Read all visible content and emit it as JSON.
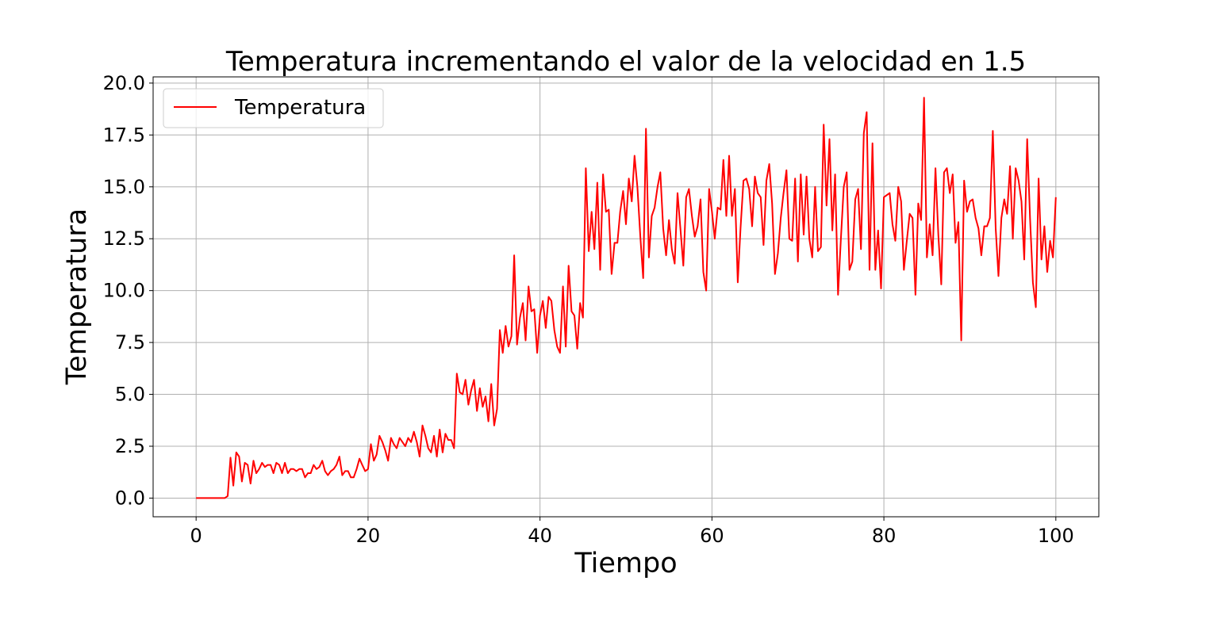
{
  "chart_data": {
    "type": "line",
    "title": "Temperatura incrementando el valor de la velocidad en 1.5",
    "xlabel": "Tiempo",
    "ylabel": "Temperatura",
    "xlim": [
      -5,
      105
    ],
    "ylim": [
      -0.9,
      20.3
    ],
    "x_ticks": [
      0,
      20,
      40,
      60,
      80,
      100
    ],
    "y_ticks": [
      0.0,
      2.5,
      5.0,
      7.5,
      10.0,
      12.5,
      15.0,
      17.5,
      20.0
    ],
    "x_tick_labels": [
      "0",
      "20",
      "40",
      "60",
      "80",
      "100"
    ],
    "y_tick_labels": [
      "0.0",
      "2.5",
      "5.0",
      "7.5",
      "10.0",
      "12.5",
      "15.0",
      "17.5",
      "20.0"
    ],
    "grid": true,
    "legend_position": "top-left",
    "series": [
      {
        "name": "Temperatura",
        "color": "#ff0000",
        "x": [
          0.0,
          0.33,
          0.67,
          1.0,
          1.33,
          1.67,
          2.0,
          2.33,
          2.67,
          3.0,
          3.33,
          3.67,
          4.0,
          4.33,
          4.67,
          5.0,
          5.33,
          5.67,
          6.0,
          6.33,
          6.67,
          7.0,
          7.33,
          7.67,
          8.0,
          8.33,
          8.67,
          9.0,
          9.33,
          9.67,
          10.0,
          10.33,
          10.67,
          11.0,
          11.33,
          11.67,
          12.0,
          12.33,
          12.67,
          13.0,
          13.33,
          13.67,
          14.0,
          14.33,
          14.67,
          15.0,
          15.33,
          15.67,
          16.0,
          16.33,
          16.67,
          17.0,
          17.33,
          17.67,
          18.0,
          18.33,
          18.67,
          19.0,
          19.33,
          19.67,
          20.0,
          20.33,
          20.67,
          21.0,
          21.33,
          21.67,
          22.0,
          22.33,
          22.67,
          23.0,
          23.33,
          23.67,
          24.0,
          24.33,
          24.67,
          25.0,
          25.33,
          25.67,
          26.0,
          26.33,
          26.67,
          27.0,
          27.33,
          27.67,
          28.0,
          28.33,
          28.67,
          29.0,
          29.33,
          29.67,
          30.0,
          30.33,
          30.67,
          31.0,
          31.33,
          31.67,
          32.0,
          32.33,
          32.67,
          33.0,
          33.33,
          33.67,
          34.0,
          34.33,
          34.67,
          35.0,
          35.33,
          35.67,
          36.0,
          36.33,
          36.67,
          37.0,
          37.33,
          37.67,
          38.0,
          38.33,
          38.67,
          39.0,
          39.33,
          39.67,
          40.0,
          40.33,
          40.67,
          41.0,
          41.33,
          41.67,
          42.0,
          42.33,
          42.67,
          43.0,
          43.33,
          43.67,
          44.0,
          44.33,
          44.67,
          45.0,
          45.33,
          45.67,
          46.0,
          46.33,
          46.67,
          47.0,
          47.33,
          47.67,
          48.0,
          48.33,
          48.67,
          49.0,
          49.33,
          49.67,
          50.0,
          50.33,
          50.67,
          51.0,
          51.33,
          51.67,
          52.0,
          52.33,
          52.67,
          53.0,
          53.33,
          53.67,
          54.0,
          54.33,
          54.67,
          55.0,
          55.33,
          55.67,
          56.0,
          56.33,
          56.67,
          57.0,
          57.33,
          57.67,
          58.0,
          58.33,
          58.67,
          59.0,
          59.33,
          59.67,
          60.0,
          60.33,
          60.67,
          61.0,
          61.33,
          61.67,
          62.0,
          62.33,
          62.67,
          63.0,
          63.33,
          63.67,
          64.0,
          64.33,
          64.67,
          65.0,
          65.33,
          65.67,
          66.0,
          66.33,
          66.67,
          67.0,
          67.33,
          67.67,
          68.0,
          68.33,
          68.67,
          69.0,
          69.33,
          69.67,
          70.0,
          70.33,
          70.67,
          71.0,
          71.33,
          71.67,
          72.0,
          72.33,
          72.67,
          73.0,
          73.33,
          73.67,
          74.0,
          74.33,
          74.67,
          75.0,
          75.33,
          75.67,
          76.0,
          76.33,
          76.67,
          77.0,
          77.33,
          77.67,
          78.0,
          78.33,
          78.67,
          79.0,
          79.33,
          79.67,
          80.0,
          80.33,
          80.67,
          81.0,
          81.33,
          81.67,
          82.0,
          82.33,
          82.67,
          83.0,
          83.33,
          83.67,
          84.0,
          84.33,
          84.67,
          85.0,
          85.33,
          85.67,
          86.0,
          86.33,
          86.67,
          87.0,
          87.33,
          87.67,
          88.0,
          88.33,
          88.67,
          89.0,
          89.33,
          89.67,
          90.0,
          90.33,
          90.67,
          91.0,
          91.33,
          91.67,
          92.0,
          92.33,
          92.67,
          93.0,
          93.33,
          93.67,
          94.0,
          94.33,
          94.67,
          95.0,
          95.33,
          95.67,
          96.0,
          96.33,
          96.67,
          97.0,
          97.33,
          97.67,
          98.0,
          98.33,
          98.67,
          99.0,
          99.33,
          99.67,
          100.0
        ],
        "y": [
          0.0,
          0.0,
          0.0,
          0.0,
          0.0,
          0.0,
          0.0,
          0.0,
          0.0,
          0.0,
          0.0,
          0.1,
          1.95,
          0.6,
          2.2,
          2.0,
          0.8,
          1.7,
          1.6,
          0.7,
          1.8,
          1.2,
          1.4,
          1.7,
          1.5,
          1.6,
          1.6,
          1.2,
          1.7,
          1.6,
          1.2,
          1.7,
          1.2,
          1.4,
          1.4,
          1.3,
          1.4,
          1.4,
          1.0,
          1.2,
          1.2,
          1.6,
          1.4,
          1.5,
          1.8,
          1.3,
          1.1,
          1.3,
          1.4,
          1.6,
          2.0,
          1.1,
          1.3,
          1.3,
          1.0,
          1.0,
          1.4,
          1.9,
          1.6,
          1.3,
          1.4,
          2.6,
          1.8,
          2.1,
          3.0,
          2.7,
          2.3,
          1.8,
          2.9,
          2.6,
          2.4,
          2.9,
          2.7,
          2.5,
          2.9,
          2.7,
          3.2,
          2.7,
          2.0,
          3.5,
          3.0,
          2.4,
          2.2,
          3.0,
          2.0,
          3.3,
          2.2,
          3.1,
          2.8,
          2.8,
          2.4,
          6.0,
          5.1,
          5.0,
          5.7,
          4.5,
          5.2,
          5.7,
          4.2,
          5.3,
          4.4,
          4.9,
          3.7,
          5.5,
          3.5,
          4.3,
          8.1,
          7.0,
          8.3,
          7.3,
          7.8,
          11.7,
          7.4,
          8.7,
          9.4,
          7.6,
          10.2,
          9.0,
          9.1,
          7.0,
          8.8,
          9.5,
          8.2,
          9.7,
          9.5,
          8.1,
          7.3,
          7.0,
          10.2,
          7.3,
          11.2,
          9.0,
          8.8,
          7.2,
          9.4,
          8.7,
          15.9,
          11.9,
          13.8,
          12.0,
          15.2,
          11.0,
          15.6,
          13.8,
          13.9,
          10.8,
          12.3,
          12.3,
          13.8,
          14.8,
          13.2,
          15.4,
          14.3,
          16.5,
          15.0,
          12.6,
          10.6,
          17.8,
          11.6,
          13.6,
          14.0,
          15.0,
          15.7,
          13.0,
          11.7,
          13.4,
          12.0,
          11.3,
          14.7,
          13.0,
          11.2,
          14.5,
          14.9,
          13.6,
          12.6,
          13.1,
          14.4,
          10.9,
          10.0,
          14.9,
          13.8,
          12.5,
          14.0,
          13.9,
          16.3,
          13.6,
          16.5,
          13.6,
          14.9,
          10.4,
          13.0,
          15.3,
          15.4,
          14.9,
          13.1,
          15.5,
          14.7,
          14.5,
          12.2,
          15.3,
          16.1,
          14.2,
          10.8,
          11.8,
          13.5,
          14.7,
          15.8,
          12.5,
          12.4,
          15.4,
          11.4,
          15.6,
          12.7,
          15.5,
          12.5,
          11.6,
          15.0,
          11.9,
          12.1,
          18.0,
          14.1,
          17.3,
          12.9,
          15.6,
          9.8,
          12.5,
          15.0,
          15.7,
          11.0,
          11.4,
          14.4,
          14.9,
          12.0,
          17.6,
          18.6,
          11.0,
          17.1,
          11.0,
          12.9,
          10.1,
          14.5,
          14.6,
          14.7,
          13.2,
          12.4,
          15.0,
          14.3,
          11.0,
          12.4,
          13.7,
          13.5,
          9.8,
          14.2,
          13.4,
          19.3,
          11.6,
          13.2,
          11.7,
          15.9,
          12.7,
          10.3,
          15.7,
          15.9,
          14.7,
          15.6,
          12.3,
          13.3,
          7.6,
          15.3,
          13.8,
          14.3,
          14.4,
          13.5,
          13.0,
          11.7,
          13.1,
          13.1,
          13.5,
          17.7,
          13.0,
          10.7,
          13.5,
          14.4,
          13.7,
          16.0,
          12.5,
          15.9,
          15.3,
          14.3,
          11.5,
          17.3,
          13.5,
          10.4,
          9.2,
          15.4,
          11.5,
          13.1,
          10.9,
          12.4,
          11.6,
          14.5
        ]
      }
    ]
  }
}
